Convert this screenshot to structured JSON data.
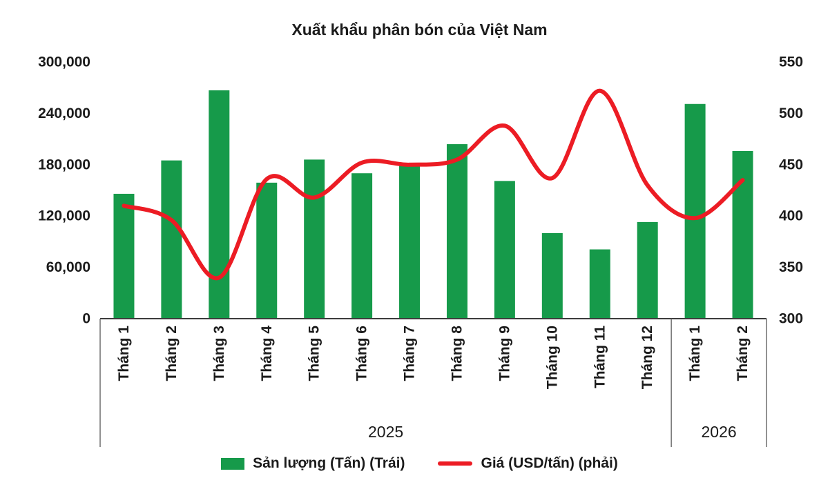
{
  "title": "Xuất khẩu phân bón của Việt Nam",
  "colors": {
    "text": "#1b1b1b",
    "axis_line": "#3c3c3c",
    "separator": "#6e6e6e",
    "bar_green": "#169a4a",
    "line_red": "#ec1c24"
  },
  "chart_data": {
    "type": "bar",
    "combo": "bar+line",
    "title": "Xuất khẩu phân bón của Việt Nam",
    "categories": [
      "Tháng 1",
      "Tháng 2",
      "Tháng 3",
      "Tháng 4",
      "Tháng 5",
      "Tháng 6",
      "Tháng 7",
      "Tháng 8",
      "Tháng 9",
      "Tháng 10",
      "Tháng 11",
      "Tháng 12",
      "Tháng 1",
      "Tháng 2"
    ],
    "year_groups": [
      {
        "label": "2025",
        "count": 12
      },
      {
        "label": "2026",
        "count": 2
      }
    ],
    "series": [
      {
        "name": "Sản lượng (Tấn) (Trái)",
        "type": "bar",
        "axis": "left",
        "color": "#169a4a",
        "values": [
          146000,
          185000,
          267000,
          159000,
          186000,
          170000,
          179000,
          204000,
          161000,
          100000,
          81000,
          113000,
          251000,
          196000
        ]
      },
      {
        "name": "Giá (USD/tấn) (phải)",
        "type": "line",
        "axis": "right",
        "color": "#ec1c24",
        "values": [
          410,
          396,
          340,
          436,
          418,
          452,
          450,
          455,
          488,
          437,
          522,
          430,
          398,
          435
        ]
      }
    ],
    "left_axis": {
      "min": 0,
      "max": 300000,
      "step": 60000,
      "tick_labels": [
        "0",
        "60,000",
        "120,000",
        "180,000",
        "240,000",
        "300,000"
      ]
    },
    "right_axis": {
      "min": 300,
      "max": 550,
      "step": 50,
      "tick_labels": [
        "300",
        "350",
        "400",
        "450",
        "500",
        "550"
      ]
    },
    "grid": false,
    "legend_position": "bottom",
    "smooth_line": true
  }
}
